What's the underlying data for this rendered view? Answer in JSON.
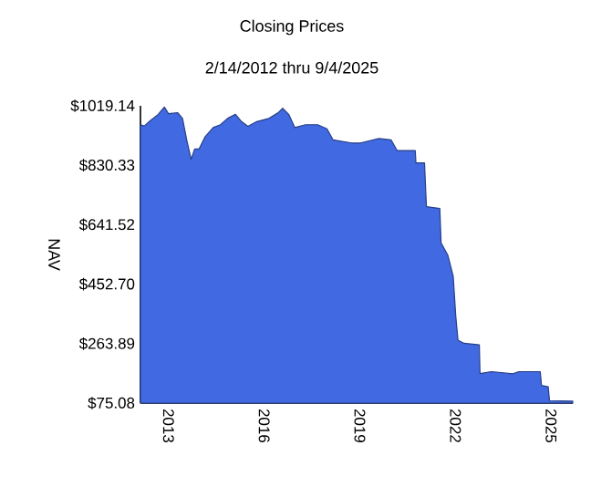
{
  "chart_data": {
    "type": "area",
    "title": "Closing Prices",
    "subtitle": "2/14/2012 thru 9/4/2025",
    "ylabel": "NAV",
    "x": [
      2012.12,
      2012.24,
      2012.43,
      2012.67,
      2012.87,
      2013.0,
      2013.29,
      2013.44,
      2013.57,
      2013.71,
      2013.82,
      2013.96,
      2014.15,
      2014.4,
      2014.63,
      2014.85,
      2015.1,
      2015.29,
      2015.49,
      2015.77,
      2016.15,
      2016.44,
      2016.58,
      2016.77,
      2016.96,
      2017.3,
      2017.68,
      2017.97,
      2018.16,
      2018.74,
      2019.02,
      2019.6,
      2019.98,
      2020.17,
      2020.74,
      2020.76,
      2021.03,
      2021.09,
      2021.51,
      2021.55,
      2021.76,
      2021.93,
      2022.01,
      2022.08,
      2022.27,
      2022.75,
      2022.77,
      2023.13,
      2023.8,
      2023.99,
      2024.66,
      2024.7,
      2024.91,
      2024.95,
      2025.68
    ],
    "values": [
      959,
      955,
      972,
      991,
      1015,
      994,
      997,
      979,
      911,
      849,
      882,
      882,
      921,
      950,
      959,
      979,
      992,
      969,
      954,
      969,
      979,
      997,
      1011,
      992,
      950,
      959,
      959,
      946,
      911,
      901,
      901,
      915,
      911,
      877,
      877,
      838,
      838,
      699,
      693,
      584,
      545,
      478,
      352,
      275,
      265,
      260,
      169,
      175,
      168,
      175,
      175,
      131,
      127,
      83,
      81
    ],
    "color": "#4169e1",
    "xlim": [
      2012.12,
      2025.68
    ],
    "ylim": [
      75.08,
      1019.14
    ],
    "xticks": [
      2013,
      2016,
      2019,
      2022,
      2025
    ],
    "yticks": [
      {
        "value": 75.08,
        "label": "$75.08"
      },
      {
        "value": 263.89,
        "label": "$263.89"
      },
      {
        "value": 452.7,
        "label": "$452.70"
      },
      {
        "value": 641.52,
        "label": "$641.52"
      },
      {
        "value": 830.33,
        "label": "$830.33"
      },
      {
        "value": 1019.14,
        "label": "$1019.14"
      }
    ]
  }
}
